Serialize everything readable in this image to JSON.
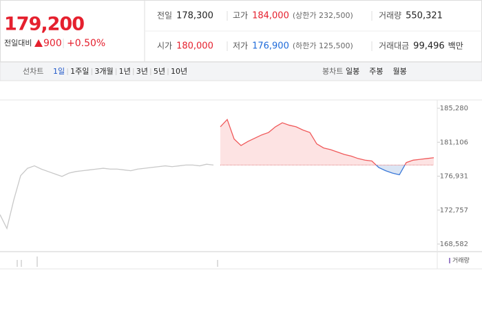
{
  "header": {
    "price": "179,200",
    "change_label": "전일대비",
    "change": "900",
    "change_pct": "+0.50%",
    "stats": [
      [
        {
          "label": "전일",
          "value": "178,300"
        },
        {
          "label": "고가",
          "value": "184,000",
          "note": "(상한가 232,500)"
        },
        {
          "label": "거래량",
          "value": "550,321"
        }
      ],
      [
        {
          "label": "시가",
          "value": "180,000"
        },
        {
          "label": "저가",
          "value": "176,900",
          "note": "(하한가 125,500)"
        },
        {
          "label": "거래대금",
          "value": "99,496",
          "unit": "백만"
        }
      ]
    ]
  },
  "tabs": {
    "line_label": "선차트",
    "line_items": [
      "1일",
      "1주일",
      "3개월",
      "1년",
      "3년",
      "5년",
      "10년"
    ],
    "selected": 0,
    "candle_label": "봉차트",
    "candle_items": [
      "일봉",
      "주봉",
      "월봉"
    ]
  },
  "chart_data": {
    "type": "line",
    "ylim": [
      167650,
      186300
    ],
    "yticks": [
      {
        "value": 185280,
        "label": "185,280"
      },
      {
        "value": 181106,
        "label": "181,106"
      },
      {
        "value": 176931,
        "label": "176,931"
      },
      {
        "value": 172757,
        "label": "172,757"
      },
      {
        "value": 168582,
        "label": "168,582"
      }
    ],
    "baseline": 178300,
    "grid": false,
    "legend": "거래량",
    "series": [
      {
        "color": "#c8c8c8",
        "values": [
          172200,
          170500,
          174000,
          177000,
          177900,
          178200,
          177800,
          177500,
          177200,
          176900,
          177300,
          177500,
          177600,
          177700,
          177800,
          177900,
          177800,
          177800,
          177700,
          177600,
          177800,
          177900,
          178000,
          178100,
          178200,
          178100,
          178200,
          178300,
          178300,
          178200,
          178400,
          178300,
          null,
          null,
          null,
          null,
          null,
          null,
          null,
          null,
          null,
          null,
          null,
          null,
          null,
          null,
          null,
          null,
          null,
          null,
          null,
          null,
          null,
          null,
          null,
          null,
          null,
          null,
          null,
          null,
          null,
          null,
          null,
          null
        ]
      },
      {
        "color": "#f0595a",
        "down_color": "#3a78d8",
        "fill": "#fde3e3",
        "down_fill": "#dbe5f4",
        "values": [
          null,
          null,
          null,
          null,
          null,
          null,
          null,
          null,
          null,
          null,
          null,
          null,
          null,
          null,
          null,
          null,
          null,
          null,
          null,
          null,
          null,
          null,
          null,
          null,
          null,
          null,
          null,
          null,
          null,
          null,
          null,
          null,
          183000,
          183900,
          181500,
          180700,
          181200,
          181600,
          182000,
          182300,
          183000,
          183500,
          183200,
          183000,
          182600,
          182300,
          180900,
          180400,
          180200,
          179900,
          179600,
          179400,
          179100,
          178900,
          178800,
          178000,
          177600,
          177300,
          177100,
          178600,
          178900,
          179000,
          179100,
          179200
        ]
      }
    ]
  }
}
